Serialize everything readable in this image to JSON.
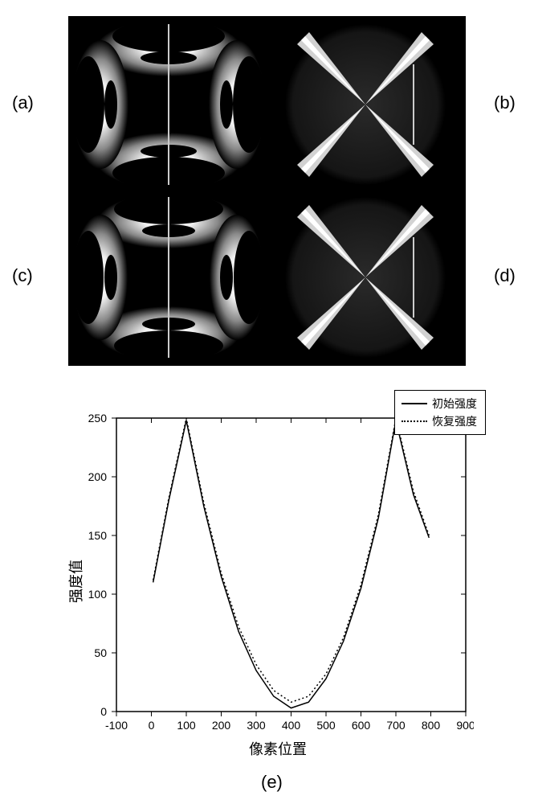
{
  "labels": {
    "a": "(a)",
    "b": "(b)",
    "c": "(c)",
    "d": "(d)",
    "e": "(e)"
  },
  "chart": {
    "type": "line",
    "xlabel": "像素位置",
    "ylabel": "强度值",
    "xlim": [
      -100,
      900
    ],
    "ylim": [
      0,
      250
    ],
    "xticks": [
      -100,
      0,
      100,
      200,
      300,
      400,
      500,
      600,
      700,
      800,
      900
    ],
    "yticks": [
      0,
      50,
      100,
      150,
      200,
      250
    ],
    "background_color": "#ffffff",
    "axis_color": "#000000",
    "series": [
      {
        "name": "初始强度",
        "color": "#000000",
        "style": "solid",
        "width": 1.5,
        "points": [
          [
            5,
            110
          ],
          [
            50,
            180
          ],
          [
            100,
            248
          ],
          [
            150,
            175
          ],
          [
            200,
            115
          ],
          [
            250,
            68
          ],
          [
            300,
            35
          ],
          [
            350,
            13
          ],
          [
            400,
            3
          ],
          [
            450,
            8
          ],
          [
            500,
            28
          ],
          [
            550,
            60
          ],
          [
            600,
            105
          ],
          [
            650,
            165
          ],
          [
            700,
            248
          ],
          [
            750,
            185
          ],
          [
            795,
            148
          ]
        ]
      },
      {
        "name": "恢复强度",
        "color": "#000000",
        "style": "dotted",
        "width": 1.5,
        "points": [
          [
            5,
            112
          ],
          [
            50,
            182
          ],
          [
            100,
            250
          ],
          [
            150,
            178
          ],
          [
            200,
            118
          ],
          [
            250,
            72
          ],
          [
            300,
            40
          ],
          [
            350,
            18
          ],
          [
            400,
            8
          ],
          [
            450,
            13
          ],
          [
            500,
            32
          ],
          [
            550,
            63
          ],
          [
            600,
            108
          ],
          [
            650,
            168
          ],
          [
            700,
            250
          ],
          [
            750,
            188
          ],
          [
            795,
            150
          ]
        ]
      }
    ]
  },
  "panels": {
    "clover_colors": {
      "bg": "#000000",
      "lobe": "#e8e8e8",
      "center": "#ffffff"
    },
    "cross_colors": {
      "bg": "#000000",
      "disk": "#1a1a1a",
      "beam": "#f5f5f5"
    },
    "line_color": "#cccccc"
  }
}
